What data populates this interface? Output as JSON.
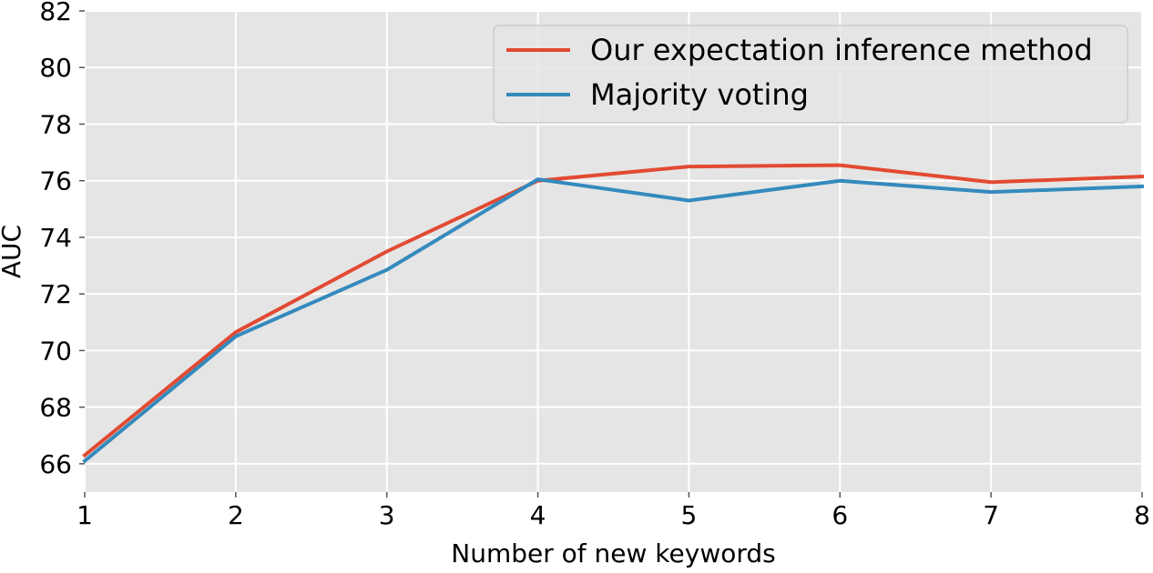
{
  "chart_data": {
    "type": "line",
    "title": "",
    "xlabel": "Number of new keywords",
    "ylabel": "AUC",
    "x": [
      1,
      2,
      3,
      4,
      5,
      6,
      7,
      8
    ],
    "xlim": [
      1,
      8
    ],
    "ylim": [
      65,
      82
    ],
    "xticks": [
      "1",
      "2",
      "3",
      "4",
      "5",
      "6",
      "7",
      "8"
    ],
    "yticks": [
      "66",
      "68",
      "70",
      "72",
      "74",
      "76",
      "78",
      "80",
      "82"
    ],
    "grid": true,
    "legend_position": "top-right",
    "series": [
      {
        "name": "Our expectation inference method",
        "color": "#E24A33",
        "values": [
          66.3,
          70.65,
          73.5,
          76.0,
          76.5,
          76.55,
          75.95,
          76.15
        ]
      },
      {
        "name": "Majority voting",
        "color": "#348ABD",
        "values": [
          66.1,
          70.5,
          72.85,
          76.05,
          75.3,
          76.0,
          75.6,
          75.8
        ]
      }
    ],
    "background_color": "#E5E5E5",
    "grid_color": "#FFFFFF"
  }
}
